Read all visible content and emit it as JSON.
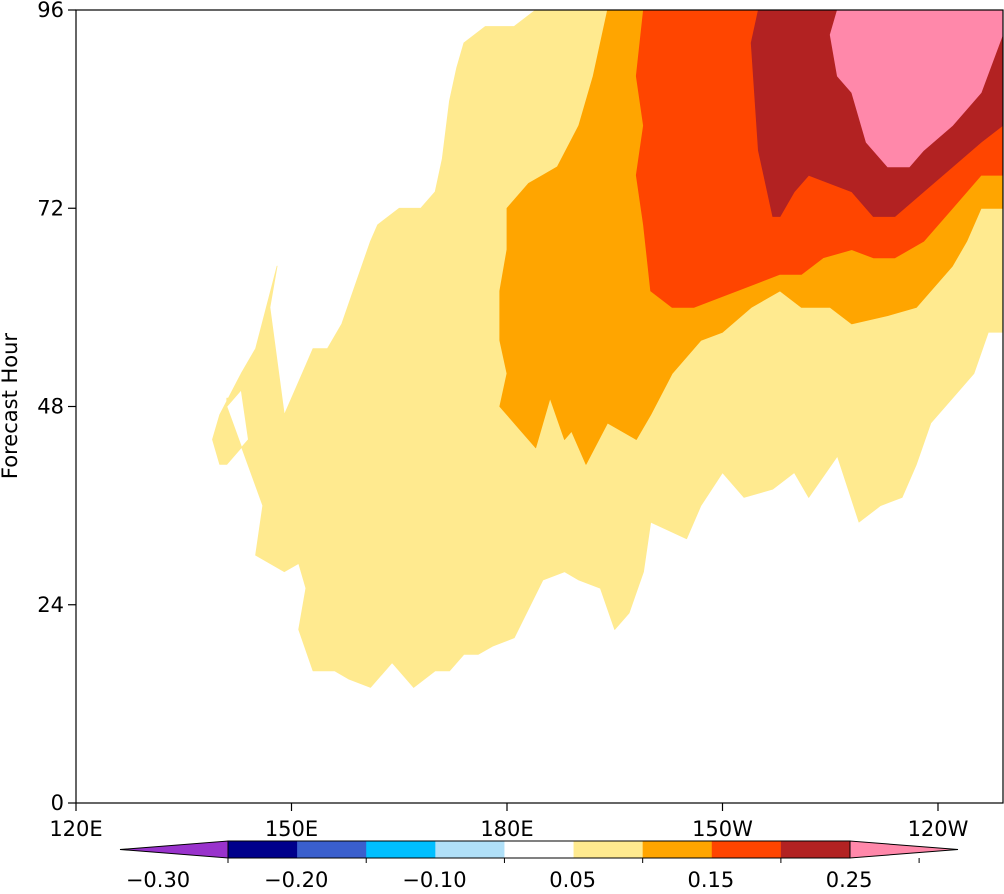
{
  "chart_data": {
    "type": "filled-contour",
    "ylabel": "Forecast Hour",
    "x_ticks": [
      {
        "lon": 120,
        "label": "120E"
      },
      {
        "lon": 150,
        "label": "150E"
      },
      {
        "lon": 180,
        "label": "180E"
      },
      {
        "lon": 210,
        "label": "150W"
      },
      {
        "lon": 240,
        "label": "120W"
      }
    ],
    "x_range_lon": [
      120,
      249
    ],
    "y_ticks": [
      0,
      24,
      48,
      72,
      96
    ],
    "ylim": [
      0,
      96
    ],
    "colorbar": {
      "levels": [
        -0.3,
        -0.25,
        -0.2,
        -0.15,
        -0.1,
        -0.05,
        0.05,
        0.1,
        0.15,
        0.2,
        0.25
      ],
      "labels": [
        "−0.30",
        "−0.20",
        "−0.10",
        "0.05",
        "0.15",
        "0.25"
      ],
      "label_levels": [
        -0.3,
        -0.2,
        -0.1,
        0.05,
        0.15,
        0.25
      ],
      "colors": [
        "#9932cc",
        "#00008b",
        "#3a5fcd",
        "#00bfff",
        "#b0e0f8",
        "#ffffff",
        "#ffea8f",
        "#ffa500",
        "#ff4500",
        "#b22222",
        "#ff88aa"
      ],
      "extend": "both"
    },
    "contour_bands": [
      {
        "level": "0.05–0.10",
        "color": "#ffea8f",
        "polygon": [
          [
            140,
            47
          ],
          [
            143,
            50
          ],
          [
            144,
            44
          ],
          [
            141,
            41
          ],
          [
            140,
            41
          ],
          [
            139,
            44
          ],
          [
            140,
            47
          ],
          [
            142,
            49
          ],
          [
            141,
            49
          ],
          [
            141,
            48
          ],
          [
            146,
            36
          ],
          [
            145,
            30
          ],
          [
            149,
            28
          ],
          [
            151,
            29
          ],
          [
            152,
            26
          ],
          [
            151,
            21
          ],
          [
            153,
            16
          ],
          [
            156,
            16
          ],
          [
            158,
            15
          ],
          [
            161,
            14
          ],
          [
            164,
            17
          ],
          [
            167,
            14
          ],
          [
            170,
            16
          ],
          [
            172,
            16
          ],
          [
            174,
            18
          ],
          [
            176,
            18
          ],
          [
            178,
            19
          ],
          [
            181,
            20
          ],
          [
            185,
            27
          ],
          [
            188,
            28
          ],
          [
            190,
            27
          ],
          [
            193,
            26
          ],
          [
            195,
            21
          ],
          [
            197,
            23
          ],
          [
            199,
            28
          ],
          [
            200,
            34
          ],
          [
            205,
            32
          ],
          [
            207,
            36
          ],
          [
            210,
            40
          ],
          [
            213,
            37
          ],
          [
            217,
            38
          ],
          [
            220,
            40
          ],
          [
            222,
            37
          ],
          [
            226,
            42
          ],
          [
            229,
            34
          ],
          [
            232,
            36
          ],
          [
            235,
            37
          ],
          [
            237,
            41
          ],
          [
            239,
            46
          ],
          [
            242,
            49
          ],
          [
            245,
            52
          ],
          [
            247,
            57
          ],
          [
            249,
            57
          ],
          [
            249,
            96
          ],
          [
            184,
            96
          ],
          [
            181,
            94
          ],
          [
            177,
            94
          ],
          [
            174,
            92
          ],
          [
            173,
            89
          ],
          [
            172,
            85
          ],
          [
            171,
            78
          ],
          [
            170,
            74
          ],
          [
            168,
            72
          ],
          [
            165,
            72
          ],
          [
            162,
            70
          ],
          [
            161,
            68
          ],
          [
            159,
            63
          ],
          [
            157,
            58
          ],
          [
            155,
            55
          ],
          [
            153,
            55
          ],
          [
            152,
            53
          ],
          [
            149,
            47
          ],
          [
            147,
            60
          ],
          [
            148,
            65
          ],
          [
            145,
            55
          ],
          [
            143,
            52
          ]
        ]
      },
      {
        "level": "0.10–0.15",
        "color": "#ffa500",
        "polygon": [
          [
            180,
            72
          ],
          [
            180,
            67
          ],
          [
            179,
            62
          ],
          [
            179,
            56
          ],
          [
            180,
            52
          ],
          [
            179,
            48
          ],
          [
            182,
            45
          ],
          [
            184,
            43
          ],
          [
            186,
            49
          ],
          [
            188,
            44
          ],
          [
            189,
            45
          ],
          [
            191,
            41
          ],
          [
            194,
            46
          ],
          [
            198,
            44
          ],
          [
            200,
            47
          ],
          [
            203,
            52
          ],
          [
            207,
            56
          ],
          [
            210,
            57
          ],
          [
            214,
            60
          ],
          [
            218,
            62
          ],
          [
            221,
            60
          ],
          [
            225,
            60
          ],
          [
            228,
            58
          ],
          [
            233,
            59
          ],
          [
            237,
            60
          ],
          [
            239,
            62
          ],
          [
            242,
            65
          ],
          [
            244,
            68
          ],
          [
            246,
            72
          ],
          [
            249,
            72
          ],
          [
            249,
            76
          ],
          [
            246,
            76
          ],
          [
            242,
            72
          ],
          [
            238,
            68
          ],
          [
            234,
            66
          ],
          [
            231,
            66
          ],
          [
            228,
            67
          ],
          [
            224,
            66
          ],
          [
            221,
            64
          ],
          [
            218,
            64
          ],
          [
            215,
            63
          ],
          [
            212,
            62
          ],
          [
            209,
            61
          ],
          [
            206,
            60
          ],
          [
            203,
            60
          ],
          [
            200,
            62
          ],
          [
            199,
            70
          ],
          [
            198,
            76
          ],
          [
            199,
            82
          ],
          [
            198,
            88
          ],
          [
            199,
            96
          ],
          [
            194,
            96
          ],
          [
            192,
            88
          ],
          [
            190,
            82
          ],
          [
            187,
            77
          ],
          [
            185,
            76
          ],
          [
            183,
            75
          ]
        ]
      },
      {
        "level": "0.15–0.20",
        "color": "#ff4500",
        "polygon": [
          [
            199,
            96
          ],
          [
            198,
            88
          ],
          [
            199,
            82
          ],
          [
            198,
            76
          ],
          [
            199,
            70
          ],
          [
            200,
            62
          ],
          [
            203,
            60
          ],
          [
            206,
            60
          ],
          [
            209,
            61
          ],
          [
            212,
            62
          ],
          [
            215,
            63
          ],
          [
            218,
            64
          ],
          [
            221,
            64
          ],
          [
            224,
            66
          ],
          [
            228,
            67
          ],
          [
            231,
            66
          ],
          [
            234,
            66
          ],
          [
            238,
            68
          ],
          [
            242,
            72
          ],
          [
            246,
            76
          ],
          [
            249,
            76
          ],
          [
            249,
            82
          ],
          [
            246,
            80
          ],
          [
            242,
            77
          ],
          [
            238,
            74
          ],
          [
            234,
            71
          ],
          [
            231,
            71
          ],
          [
            228,
            74
          ],
          [
            225,
            75
          ],
          [
            222,
            76
          ],
          [
            220,
            74
          ],
          [
            218,
            71
          ],
          [
            217,
            71
          ],
          [
            215,
            79
          ],
          [
            214,
            92
          ],
          [
            215,
            96
          ]
        ]
      },
      {
        "level": "0.20–0.25",
        "color": "#b22222",
        "polygon": [
          [
            215,
            96
          ],
          [
            214,
            92
          ],
          [
            215,
            79
          ],
          [
            217,
            71
          ],
          [
            218,
            71
          ],
          [
            220,
            74
          ],
          [
            222,
            76
          ],
          [
            225,
            75
          ],
          [
            228,
            74
          ],
          [
            231,
            71
          ],
          [
            234,
            71
          ],
          [
            238,
            74
          ],
          [
            242,
            77
          ],
          [
            246,
            80
          ],
          [
            249,
            82
          ],
          [
            249,
            93
          ],
          [
            246,
            86
          ],
          [
            242,
            82
          ],
          [
            238,
            79
          ],
          [
            236,
            77
          ],
          [
            233,
            77
          ],
          [
            230,
            80
          ],
          [
            228,
            86
          ],
          [
            226,
            88
          ],
          [
            225,
            93
          ],
          [
            226,
            96
          ]
        ]
      },
      {
        "level": ">0.25",
        "color": "#ff88aa",
        "polygon": [
          [
            226,
            96
          ],
          [
            225,
            93
          ],
          [
            226,
            88
          ],
          [
            228,
            86
          ],
          [
            230,
            80
          ],
          [
            233,
            77
          ],
          [
            236,
            77
          ],
          [
            238,
            79
          ],
          [
            242,
            82
          ],
          [
            246,
            86
          ],
          [
            249,
            93
          ],
          [
            249,
            96
          ]
        ]
      }
    ]
  }
}
